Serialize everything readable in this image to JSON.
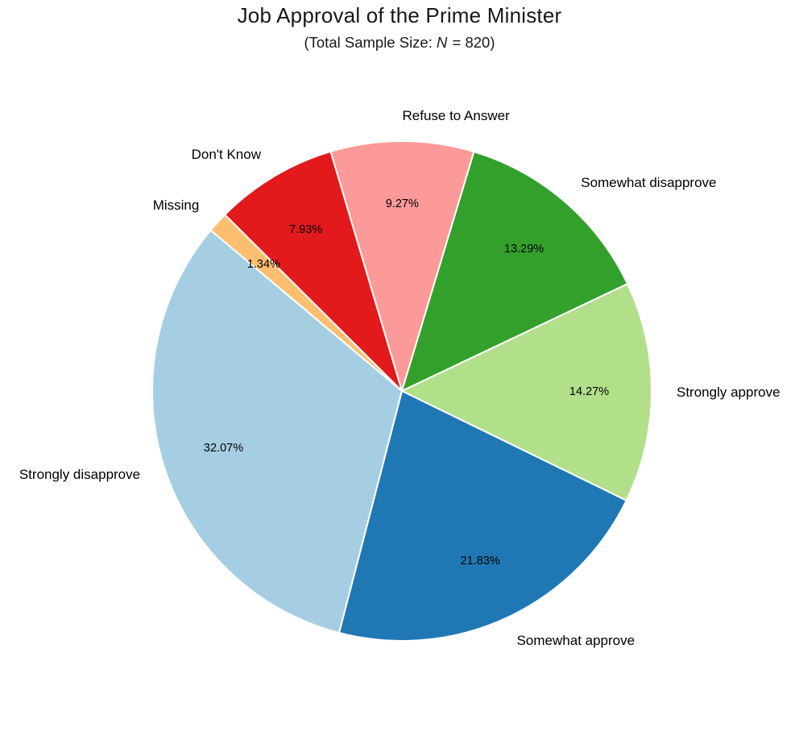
{
  "chart_data": {
    "type": "pie",
    "title": "Job Approval of the Prime Minister",
    "subtitle": {
      "prefix": "(Total Sample Size: ",
      "variable": "N",
      "suffix": " = 820)"
    },
    "total_sample_size": 820,
    "start_angle_deg": 106.6,
    "direction": "clockwise",
    "label_distance": 1.1,
    "pct_distance": 0.75,
    "legend_position": "none",
    "slices": [
      {
        "label": "Refuse to Answer",
        "value": 9.27,
        "pct_label": "9.27%",
        "color": "#fb9a99"
      },
      {
        "label": "Somewhat disapprove",
        "value": 13.29,
        "pct_label": "13.29%",
        "color": "#33a02c"
      },
      {
        "label": "Strongly approve",
        "value": 14.27,
        "pct_label": "14.27%",
        "color": "#b2df8a"
      },
      {
        "label": "Somewhat approve",
        "value": 21.83,
        "pct_label": "21.83%",
        "color": "#1f78b4"
      },
      {
        "label": "Strongly disapprove",
        "value": 32.07,
        "pct_label": "32.07%",
        "color": "#a6cee3"
      },
      {
        "label": "Missing",
        "value": 1.34,
        "pct_label": "1.34%",
        "color": "#fdbf6f"
      },
      {
        "label": "Don't Know",
        "value": 7.93,
        "pct_label": "7.93%",
        "color": "#e31a1c"
      }
    ],
    "colors": {
      "background": "#ffffff",
      "text": "#000000",
      "wedge_edge": "#ffffff"
    }
  }
}
